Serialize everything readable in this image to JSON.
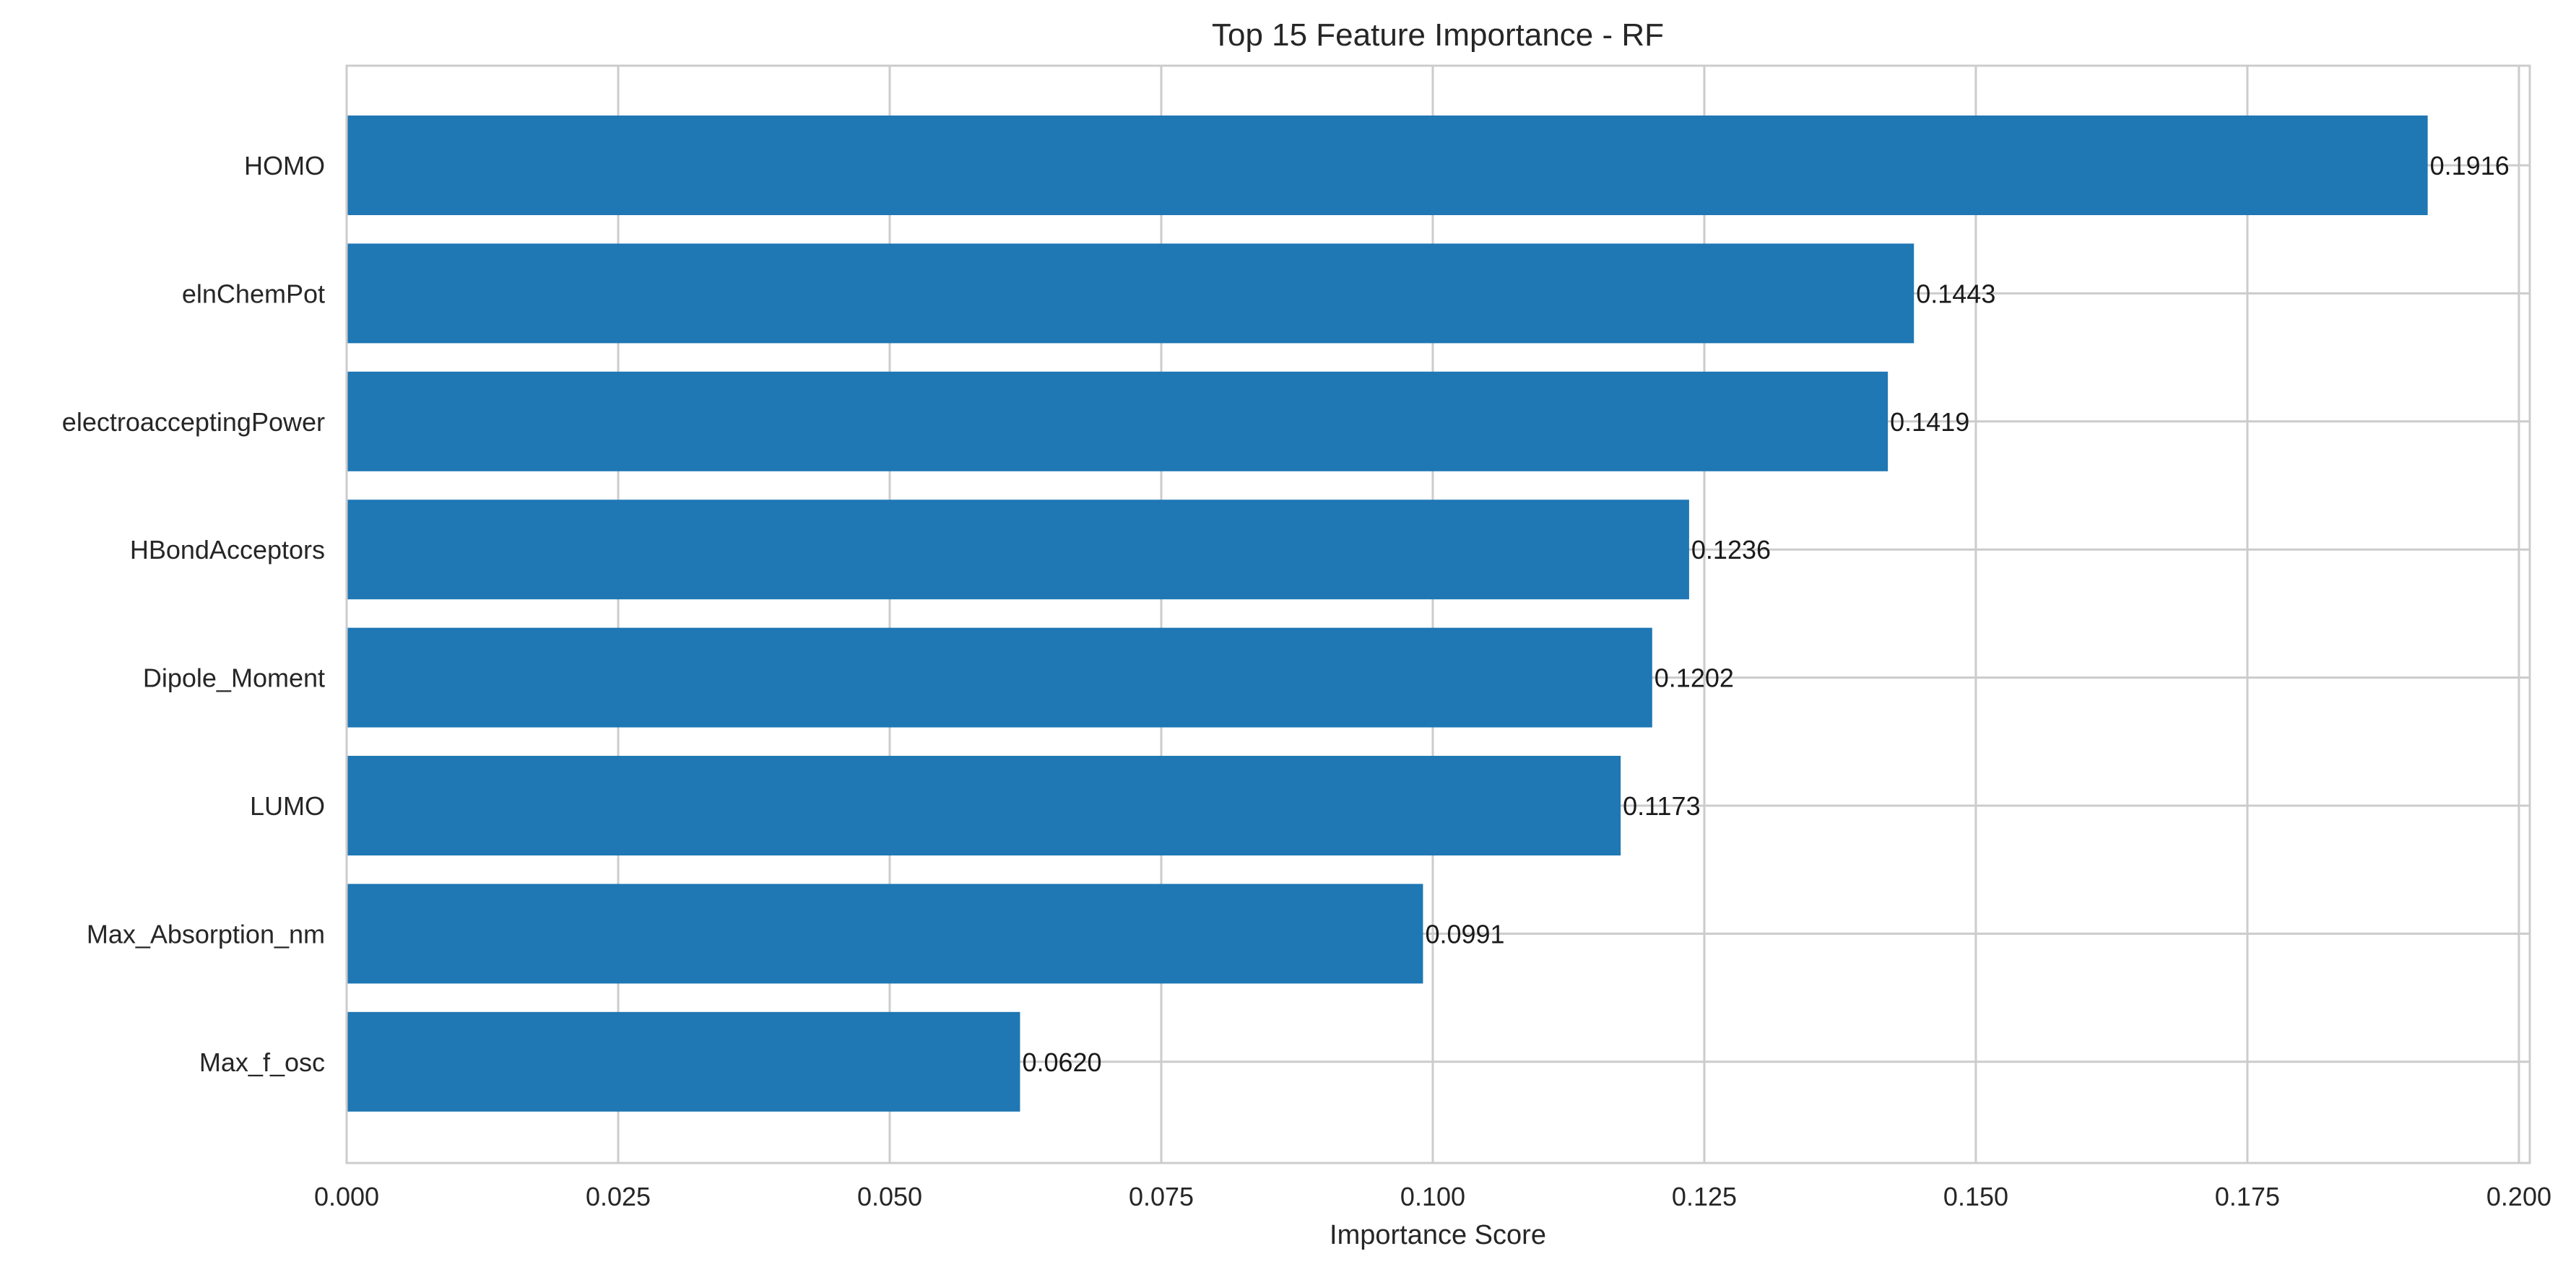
{
  "chart_data": {
    "type": "bar",
    "orientation": "horizontal",
    "title": "Top 15 Feature Importance - RF",
    "xlabel": "Importance Score",
    "ylabel": "",
    "categories": [
      "HOMO",
      "elnChemPot",
      "electroacceptingPower",
      "HBondAcceptors",
      "Dipole_Moment",
      "LUMO",
      "Max_Absorption_nm",
      "Max_f_osc"
    ],
    "values": [
      0.1916,
      0.1443,
      0.1419,
      0.1236,
      0.1202,
      0.1173,
      0.0991,
      0.062
    ],
    "value_labels": [
      "0.1916",
      "0.1443",
      "0.1419",
      "0.1236",
      "0.1202",
      "0.1173",
      "0.0991",
      "0.0620"
    ],
    "xlim": [
      0,
      0.201
    ],
    "xticks": [
      0,
      0.025,
      0.05,
      0.075,
      0.1,
      0.125,
      0.15,
      0.175,
      0.2
    ],
    "xtick_labels": [
      "0.000",
      "0.025",
      "0.050",
      "0.075",
      "0.100",
      "0.125",
      "0.150",
      "0.175",
      "0.200"
    ],
    "grid": true,
    "bar_color": "#1f77b4",
    "grid_color": "#cccccc",
    "spine_color": "#cccccc"
  }
}
